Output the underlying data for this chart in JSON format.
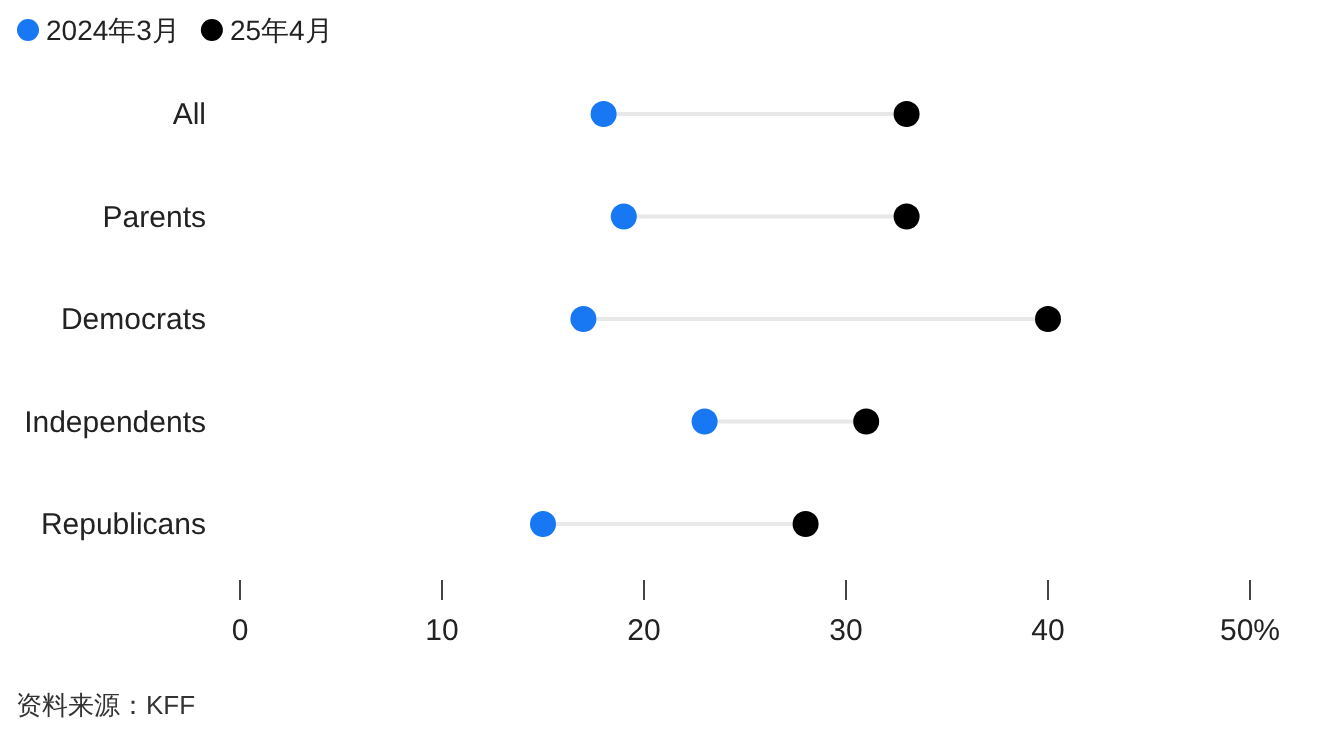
{
  "chart_data": {
    "type": "scatter",
    "orientation": "horizontal",
    "marker": "circle",
    "legend": "top left",
    "grid": false,
    "categories": [
      "All",
      "Parents",
      "Democrats",
      "Independents",
      "Republicans"
    ],
    "series": [
      {
        "name": "2024年3月",
        "color": "#1877f2",
        "values": [
          18,
          19,
          17,
          23,
          15
        ]
      },
      {
        "name": "25年4月",
        "color": "#000000",
        "values": [
          33,
          33,
          40,
          31,
          28
        ]
      }
    ],
    "xlim": [
      0,
      50
    ],
    "xticks": [
      0,
      10,
      20,
      30,
      40,
      {
        "value": 50,
        "label": "50%"
      }
    ],
    "annotations": [
      "资料来源：KFF"
    ]
  }
}
